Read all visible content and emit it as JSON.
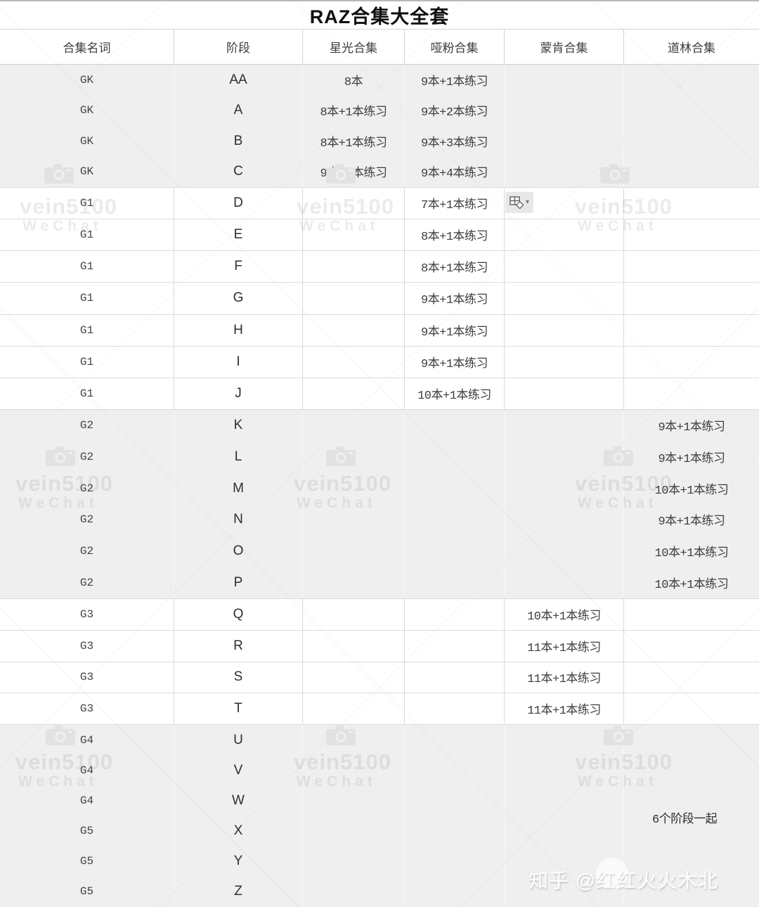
{
  "title": "RAZ合集大全套",
  "columns": [
    "合集名词",
    "阶段",
    "星光合集",
    "哑粉合集",
    "蒙肯合集",
    "道林合集"
  ],
  "sections": [
    {
      "label": "GK",
      "rows": [
        [
          "GK",
          "AA",
          "8本",
          "9本+1本练习",
          "",
          ""
        ],
        [
          "GK",
          "A",
          "8本+1本练习",
          "9本+2本练习",
          "",
          ""
        ],
        [
          "GK",
          "B",
          "8本+1本练习",
          "9本+3本练习",
          "",
          ""
        ],
        [
          "GK",
          "C",
          "9本+1本练习",
          "9本+4本练习",
          "",
          ""
        ]
      ]
    },
    {
      "label": "G1",
      "rows": [
        [
          "G1",
          "D",
          "",
          "7本+1本练习",
          "",
          ""
        ],
        [
          "G1",
          "E",
          "",
          "8本+1本练习",
          "",
          ""
        ],
        [
          "G1",
          "F",
          "",
          "8本+1本练习",
          "",
          ""
        ],
        [
          "G1",
          "G",
          "",
          "9本+1本练习",
          "",
          ""
        ],
        [
          "G1",
          "H",
          "",
          "9本+1本练习",
          "",
          ""
        ],
        [
          "G1",
          "I",
          "",
          "9本+1本练习",
          "",
          ""
        ],
        [
          "G1",
          "J",
          "",
          "10本+1本练习",
          "",
          ""
        ]
      ]
    },
    {
      "label": "G2",
      "rows": [
        [
          "G2",
          "K",
          "",
          "",
          "",
          "9本+1本练习"
        ],
        [
          "G2",
          "L",
          "",
          "",
          "",
          "9本+1本练习"
        ],
        [
          "G2",
          "M",
          "",
          "",
          "",
          "10本+1本练习"
        ],
        [
          "G2",
          "N",
          "",
          "",
          "",
          "9本+1本练习"
        ],
        [
          "G2",
          "O",
          "",
          "",
          "",
          "10本+1本练习"
        ],
        [
          "G2",
          "P",
          "",
          "",
          "",
          "10本+1本练习"
        ]
      ]
    },
    {
      "label": "G3",
      "rows": [
        [
          "G3",
          "Q",
          "",
          "",
          "10本+1本练习",
          ""
        ],
        [
          "G3",
          "R",
          "",
          "",
          "11本+1本练习",
          ""
        ],
        [
          "G3",
          "S",
          "",
          "",
          "11本+1本练习",
          ""
        ],
        [
          "G3",
          "T",
          "",
          "",
          "11本+1本练习",
          ""
        ]
      ]
    },
    {
      "label": "G4G5",
      "rows": [
        [
          "G4",
          "U",
          "",
          "",
          "",
          ""
        ],
        [
          "G4",
          "V",
          "",
          "",
          "",
          ""
        ],
        [
          "G4",
          "W",
          "",
          "",
          "",
          ""
        ],
        [
          "G5",
          "X",
          "",
          "",
          "",
          ""
        ],
        [
          "G5",
          "Y",
          "",
          "",
          "",
          ""
        ],
        [
          "G5",
          "Z",
          "",
          "",
          "",
          ""
        ]
      ]
    }
  ],
  "annotations": {
    "note": "6个阶段一起"
  },
  "watermarks": {
    "brand_line1": "vein5100",
    "brand_line2": "WeChat",
    "zhihu_credit": "知乎 @红红火火木北"
  },
  "paste_button": {
    "caret": "▾"
  }
}
